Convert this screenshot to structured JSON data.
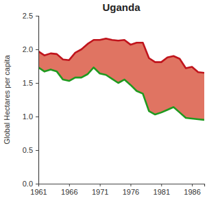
{
  "chart_data": {
    "type": "area",
    "title": "Uganda",
    "y_label": "Global Hectares per capita",
    "x": [
      1961,
      1962,
      1963,
      1964,
      1965,
      1966,
      1967,
      1968,
      1969,
      1970,
      1971,
      1972,
      1973,
      1974,
      1975,
      1976,
      1977,
      1978,
      1979,
      1980,
      1981,
      1982,
      1983,
      1984,
      1985,
      1986,
      1987,
      1988
    ],
    "series": [
      {
        "color": "#c0141c",
        "values": [
          1.97,
          1.91,
          1.94,
          1.93,
          1.85,
          1.84,
          1.95,
          2.0,
          2.08,
          2.14,
          2.14,
          2.16,
          2.14,
          2.13,
          2.14,
          2.07,
          2.1,
          2.1,
          1.87,
          1.81,
          1.81,
          1.88,
          1.9,
          1.86,
          1.72,
          1.74,
          1.66,
          1.65
        ]
      },
      {
        "color": "#1f9a1f",
        "values": [
          1.73,
          1.67,
          1.7,
          1.67,
          1.55,
          1.53,
          1.58,
          1.58,
          1.63,
          1.73,
          1.64,
          1.62,
          1.56,
          1.5,
          1.55,
          1.47,
          1.38,
          1.34,
          1.08,
          1.03,
          1.06,
          1.1,
          1.14,
          1.06,
          0.98,
          0.97,
          0.96,
          0.95
        ]
      }
    ],
    "xlim": [
      1961,
      1988
    ],
    "xticks": [
      1961,
      1966,
      1971,
      1976,
      1981,
      1986
    ],
    "ylim": [
      0,
      2.5
    ],
    "yticks": [
      {
        "value": 0,
        "label": "0.0"
      },
      0.5,
      {
        "value": 1,
        "label": "1.0"
      },
      1.5,
      {
        "value": 2,
        "label": "2.0"
      },
      2.5
    ],
    "grid": false
  }
}
